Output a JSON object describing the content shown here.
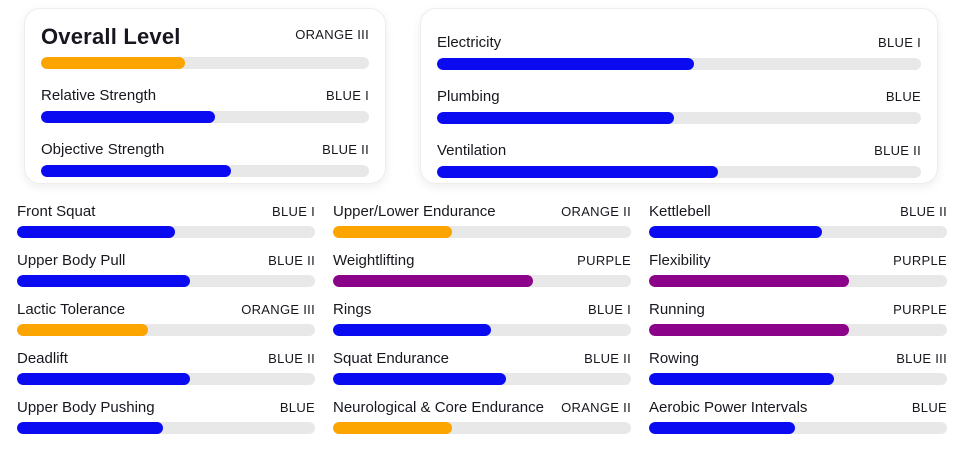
{
  "palette": {
    "orange": "#FCA400",
    "blue": "#0B0BF2",
    "purple": "#8B0389",
    "track": "#E8E8E8",
    "text": "#17171F"
  },
  "overview_cards": [
    {
      "name": "overall-level-card",
      "rows": [
        {
          "label": "Overall Level",
          "level": "ORANGE III",
          "percent": 44,
          "color": "orange"
        },
        {
          "label": "Relative Strength",
          "level": "BLUE I",
          "percent": 53,
          "color": "blue"
        },
        {
          "label": "Objective Strength",
          "level": "BLUE II",
          "percent": 58,
          "color": "blue"
        }
      ]
    },
    {
      "name": "utilities-card",
      "rows": [
        {
          "label": "Electricity",
          "level": "BLUE I",
          "percent": 53,
          "color": "blue"
        },
        {
          "label": "Plumbing",
          "level": "BLUE",
          "percent": 49,
          "color": "blue"
        },
        {
          "label": "Ventilation",
          "level": "BLUE II",
          "percent": 58,
          "color": "blue"
        }
      ]
    }
  ],
  "stats_grid": {
    "columns": [
      {
        "rows": [
          {
            "label": "Front Squat",
            "level": "BLUE I",
            "percent": 53,
            "color": "blue"
          },
          {
            "label": "Upper Body Pull",
            "level": "BLUE II",
            "percent": 58,
            "color": "blue"
          },
          {
            "label": "Lactic Tolerance",
            "level": "ORANGE III",
            "percent": 44,
            "color": "orange"
          },
          {
            "label": "Deadlift",
            "level": "BLUE II",
            "percent": 58,
            "color": "blue"
          },
          {
            "label": "Upper Body Pushing",
            "level": "BLUE",
            "percent": 49,
            "color": "blue"
          }
        ]
      },
      {
        "rows": [
          {
            "label": "Upper/Lower Endurance",
            "level": "ORANGE II",
            "percent": 40,
            "color": "orange"
          },
          {
            "label": "Weightlifting",
            "level": "PURPLE",
            "percent": 67,
            "color": "purple"
          },
          {
            "label": "Rings",
            "level": "BLUE I",
            "percent": 53,
            "color": "blue"
          },
          {
            "label": "Squat Endurance",
            "level": "BLUE II",
            "percent": 58,
            "color": "blue"
          },
          {
            "label": "Neurological & Core Endurance",
            "level": "ORANGE II",
            "percent": 40,
            "color": "orange"
          }
        ]
      },
      {
        "rows": [
          {
            "label": "Kettlebell",
            "level": "BLUE II",
            "percent": 58,
            "color": "blue"
          },
          {
            "label": "Flexibility",
            "level": "PURPLE",
            "percent": 67,
            "color": "purple"
          },
          {
            "label": "Running",
            "level": "PURPLE",
            "percent": 67,
            "color": "purple"
          },
          {
            "label": "Rowing",
            "level": "BLUE III",
            "percent": 62,
            "color": "blue"
          },
          {
            "label": "Aerobic Power Intervals",
            "level": "BLUE",
            "percent": 49,
            "color": "blue"
          }
        ]
      }
    ]
  }
}
